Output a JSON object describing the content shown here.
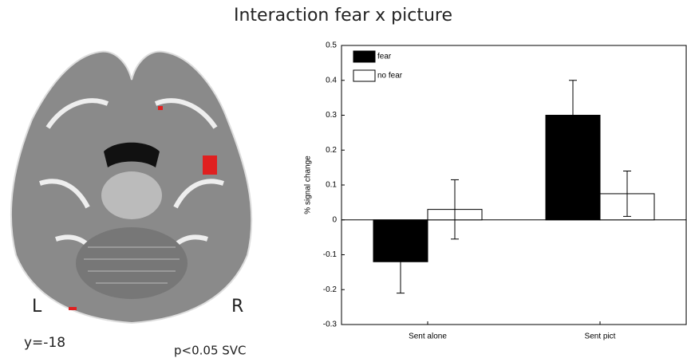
{
  "title": "Interaction fear x picture",
  "brain": {
    "left_label": "L",
    "right_label": "R",
    "slice": "y=-18",
    "threshold": "p<0.05 SVC"
  },
  "chart_data": {
    "type": "bar",
    "ylabel": "% signal change",
    "categories": [
      "Sent alone",
      "Sent pict"
    ],
    "series": [
      {
        "name": "fear",
        "color": "#000000",
        "values": [
          -0.12,
          0.3
        ],
        "errors": [
          0.09,
          0.1
        ]
      },
      {
        "name": "no fear",
        "color": "#ffffff",
        "values": [
          0.03,
          0.075
        ],
        "errors": [
          0.085,
          0.065
        ]
      }
    ],
    "ylim": [
      -0.3,
      0.5
    ],
    "yticks": [
      -0.3,
      -0.2,
      -0.1,
      0,
      0.1,
      0.2,
      0.3,
      0.4,
      0.5
    ],
    "legend": "upper left"
  }
}
